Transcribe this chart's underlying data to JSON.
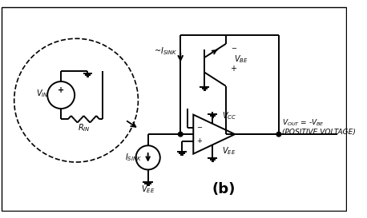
{
  "bg_color": "#ffffff",
  "border_color": "#000000",
  "line_color": "#000000",
  "title": "(b)",
  "label_vin": "V$_{IN}$",
  "label_rin": "R$_{IN}$",
  "label_isink": "I$_{SINK}$",
  "label_approx_isink": "~I$_{SINK}$",
  "label_vbe": "V$_{BE}$",
  "label_vcc": "V$_{CC}$",
  "label_vee": "V$_{EE}$",
  "label_vee2": "V$_{EE}$",
  "label_vout": "V$_{OUT}$ = -V$_{BE}$\n(POSITIVE VOLTAGE)",
  "figsize": [
    4.58,
    2.73
  ],
  "dpi": 100
}
